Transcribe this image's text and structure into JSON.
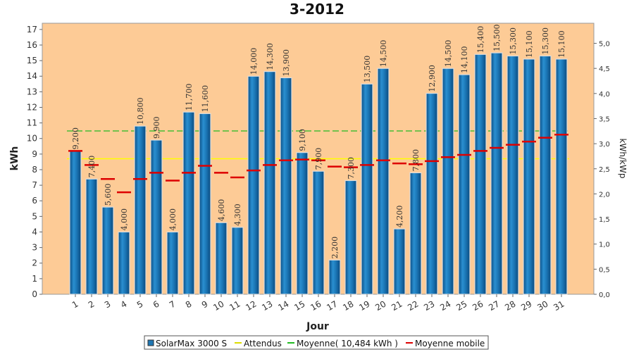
{
  "chart_data": {
    "type": "bar",
    "title": "3-2012",
    "xlabel": "Jour",
    "ylabel": "kWh",
    "ylabel_right": "kWh/kWp",
    "ylim": [
      0,
      17.4
    ],
    "yticks": [
      "0",
      "1",
      "2",
      "3",
      "4",
      "5",
      "6",
      "7",
      "8",
      "9",
      "10",
      "11",
      "12",
      "13",
      "14",
      "15",
      "16",
      "17"
    ],
    "ylim_right": [
      0,
      5.4
    ],
    "yticks_right": [
      "0,0",
      "0,5",
      "1,0",
      "1,5",
      "2,0",
      "2,5",
      "3,0",
      "3,5",
      "4,0",
      "4,5",
      "5,0"
    ],
    "grid": false,
    "legend_position": "bottom",
    "categories": [
      "1",
      "2",
      "3",
      "4",
      "5",
      "6",
      "7",
      "8",
      "9",
      "10",
      "11",
      "12",
      "13",
      "14",
      "15",
      "16",
      "17",
      "18",
      "19",
      "20",
      "21",
      "22",
      "23",
      "24",
      "25",
      "26",
      "27",
      "28",
      "29",
      "30",
      "31"
    ],
    "series": [
      {
        "name": "SolarMax 3000 S",
        "color": "#1f77b4",
        "values": [
          9.2,
          7.4,
          5.6,
          4.0,
          10.8,
          9.9,
          4.0,
          11.7,
          11.6,
          4.6,
          4.3,
          14.0,
          14.3,
          13.9,
          9.1,
          7.9,
          2.2,
          7.3,
          13.5,
          14.5,
          4.2,
          7.8,
          12.9,
          14.5,
          14.1,
          15.4,
          15.5,
          15.3,
          15.1,
          15.3,
          15.1
        ],
        "labels": [
          "9,200",
          "7,400",
          "5,600",
          "4,000",
          "10,800",
          "9,900",
          "4,000",
          "11,700",
          "11,600",
          "4,600",
          "4,300",
          "14,000",
          "14,300",
          "13,900",
          "9,100",
          "7,900",
          "2,200",
          "7,300",
          "13,500",
          "14,500",
          "4,200",
          "7,800",
          "12,900",
          "14,500",
          "14,100",
          "15,400",
          "15,500",
          "15,300",
          "15,100",
          "15,300",
          "15,100"
        ]
      },
      {
        "name": "Attendus",
        "color": "#ffff00",
        "value": 8.7
      },
      {
        "name": "Moyenne( 10,484 kWh )",
        "color": "#22bb22",
        "value": 10.484
      },
      {
        "name": "Moyenne mobile",
        "color": "#dd0000",
        "values": [
          9.2,
          8.3,
          7.4,
          6.55,
          7.4,
          7.8,
          7.3,
          7.8,
          8.25,
          7.8,
          7.5,
          7.95,
          8.3,
          8.6,
          8.65,
          8.6,
          8.2,
          8.15,
          8.3,
          8.6,
          8.4,
          8.35,
          8.55,
          8.8,
          8.95,
          9.2,
          9.4,
          9.6,
          9.8,
          10.05,
          10.25
        ]
      }
    ]
  }
}
